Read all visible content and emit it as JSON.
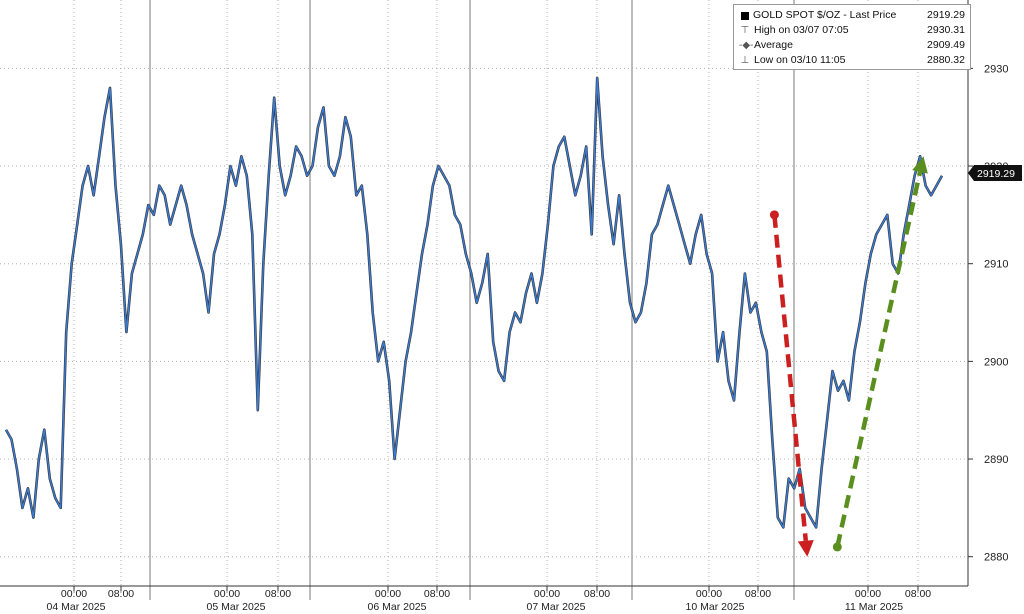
{
  "legend": {
    "title_row": {
      "label": "GOLD SPOT $/OZ - Last Price",
      "value": "2919.29"
    },
    "high_row": {
      "label": "High on 03/07 07:05",
      "value": "2930.31"
    },
    "avg_row": {
      "label": "Average",
      "value": "2909.49"
    },
    "low_row": {
      "label": "Low on 03/10 11:05",
      "value": "2880.32"
    }
  },
  "chart_data": {
    "type": "line",
    "title": "GOLD SPOT $/OZ - Last Price",
    "ylim": [
      2877,
      2937
    ],
    "y_ticks": [
      2880,
      2890,
      2900,
      2910,
      2920,
      2930
    ],
    "y_axis_position": "right",
    "grid": true,
    "x_tick_labels": [
      "00:00",
      "08:00",
      "00:00",
      "08:00",
      "00:00",
      "08:00",
      "00:00",
      "08:00",
      "00:00",
      "08:00",
      "00:00",
      "08:00"
    ],
    "date_labels": [
      "04 Mar 2025",
      "05 Mar 2025",
      "06 Mar 2025",
      "07 Mar 2025",
      "10 Mar 2025",
      "11 Mar 2025"
    ],
    "last_price_label": "2919.29",
    "series": [
      {
        "name": "GOLD SPOT $/OZ",
        "color": "#3a7bd5",
        "values": [
          2893,
          2892,
          2889,
          2885,
          2887,
          2884,
          2890,
          2893,
          2888,
          2886,
          2885,
          2903,
          2910,
          2914,
          2918,
          2920,
          2917,
          2921,
          2925,
          2928,
          2918,
          2912,
          2903,
          2909,
          2911,
          2913,
          2916,
          2915,
          2918,
          2917,
          2914,
          2916,
          2918,
          2916,
          2913,
          2911,
          2909,
          2905,
          2911,
          2913,
          2916,
          2920,
          2918,
          2921,
          2919,
          2913,
          2895,
          2910,
          2919,
          2927,
          2920,
          2917,
          2919,
          2922,
          2921,
          2919,
          2920,
          2924,
          2926,
          2920,
          2919,
          2921,
          2925,
          2923,
          2917,
          2918,
          2913,
          2905,
          2900,
          2902,
          2898,
          2890,
          2895,
          2900,
          2903,
          2907,
          2911,
          2914,
          2918,
          2920,
          2919,
          2918,
          2915,
          2914,
          2911,
          2909,
          2906,
          2908,
          2911,
          2902,
          2899,
          2898,
          2903,
          2905,
          2904,
          2907,
          2909,
          2906,
          2909,
          2914,
          2920,
          2922,
          2923,
          2920,
          2917,
          2919,
          2922,
          2913,
          2929,
          2921,
          2916,
          2912,
          2917,
          2911,
          2906,
          2904,
          2905,
          2908,
          2913,
          2914,
          2916,
          2918,
          2916,
          2914,
          2912,
          2910,
          2913,
          2915,
          2911,
          2909,
          2900,
          2903,
          2898,
          2896,
          2903,
          2909,
          2905,
          2906,
          2903,
          2901,
          2892,
          2884,
          2883,
          2888,
          2887,
          2889,
          2885,
          2884,
          2883,
          2889,
          2894,
          2899,
          2897,
          2898,
          2896,
          2901,
          2904,
          2908,
          2911,
          2913,
          2914,
          2915,
          2910,
          2909,
          2913,
          2916,
          2919,
          2921,
          2918,
          2917,
          2918,
          2919
        ]
      }
    ],
    "annotations": [
      {
        "type": "arrow",
        "color": "#cc1f1f",
        "direction": "down",
        "from": {
          "x": 0.8,
          "y": 2915
        },
        "to": {
          "x": 0.834,
          "y": 2880
        }
      },
      {
        "type": "arrow",
        "color": "#5a8f1f",
        "direction": "up",
        "from": {
          "x": 0.865,
          "y": 2881
        },
        "to": {
          "x": 0.954,
          "y": 2921
        }
      }
    ]
  }
}
